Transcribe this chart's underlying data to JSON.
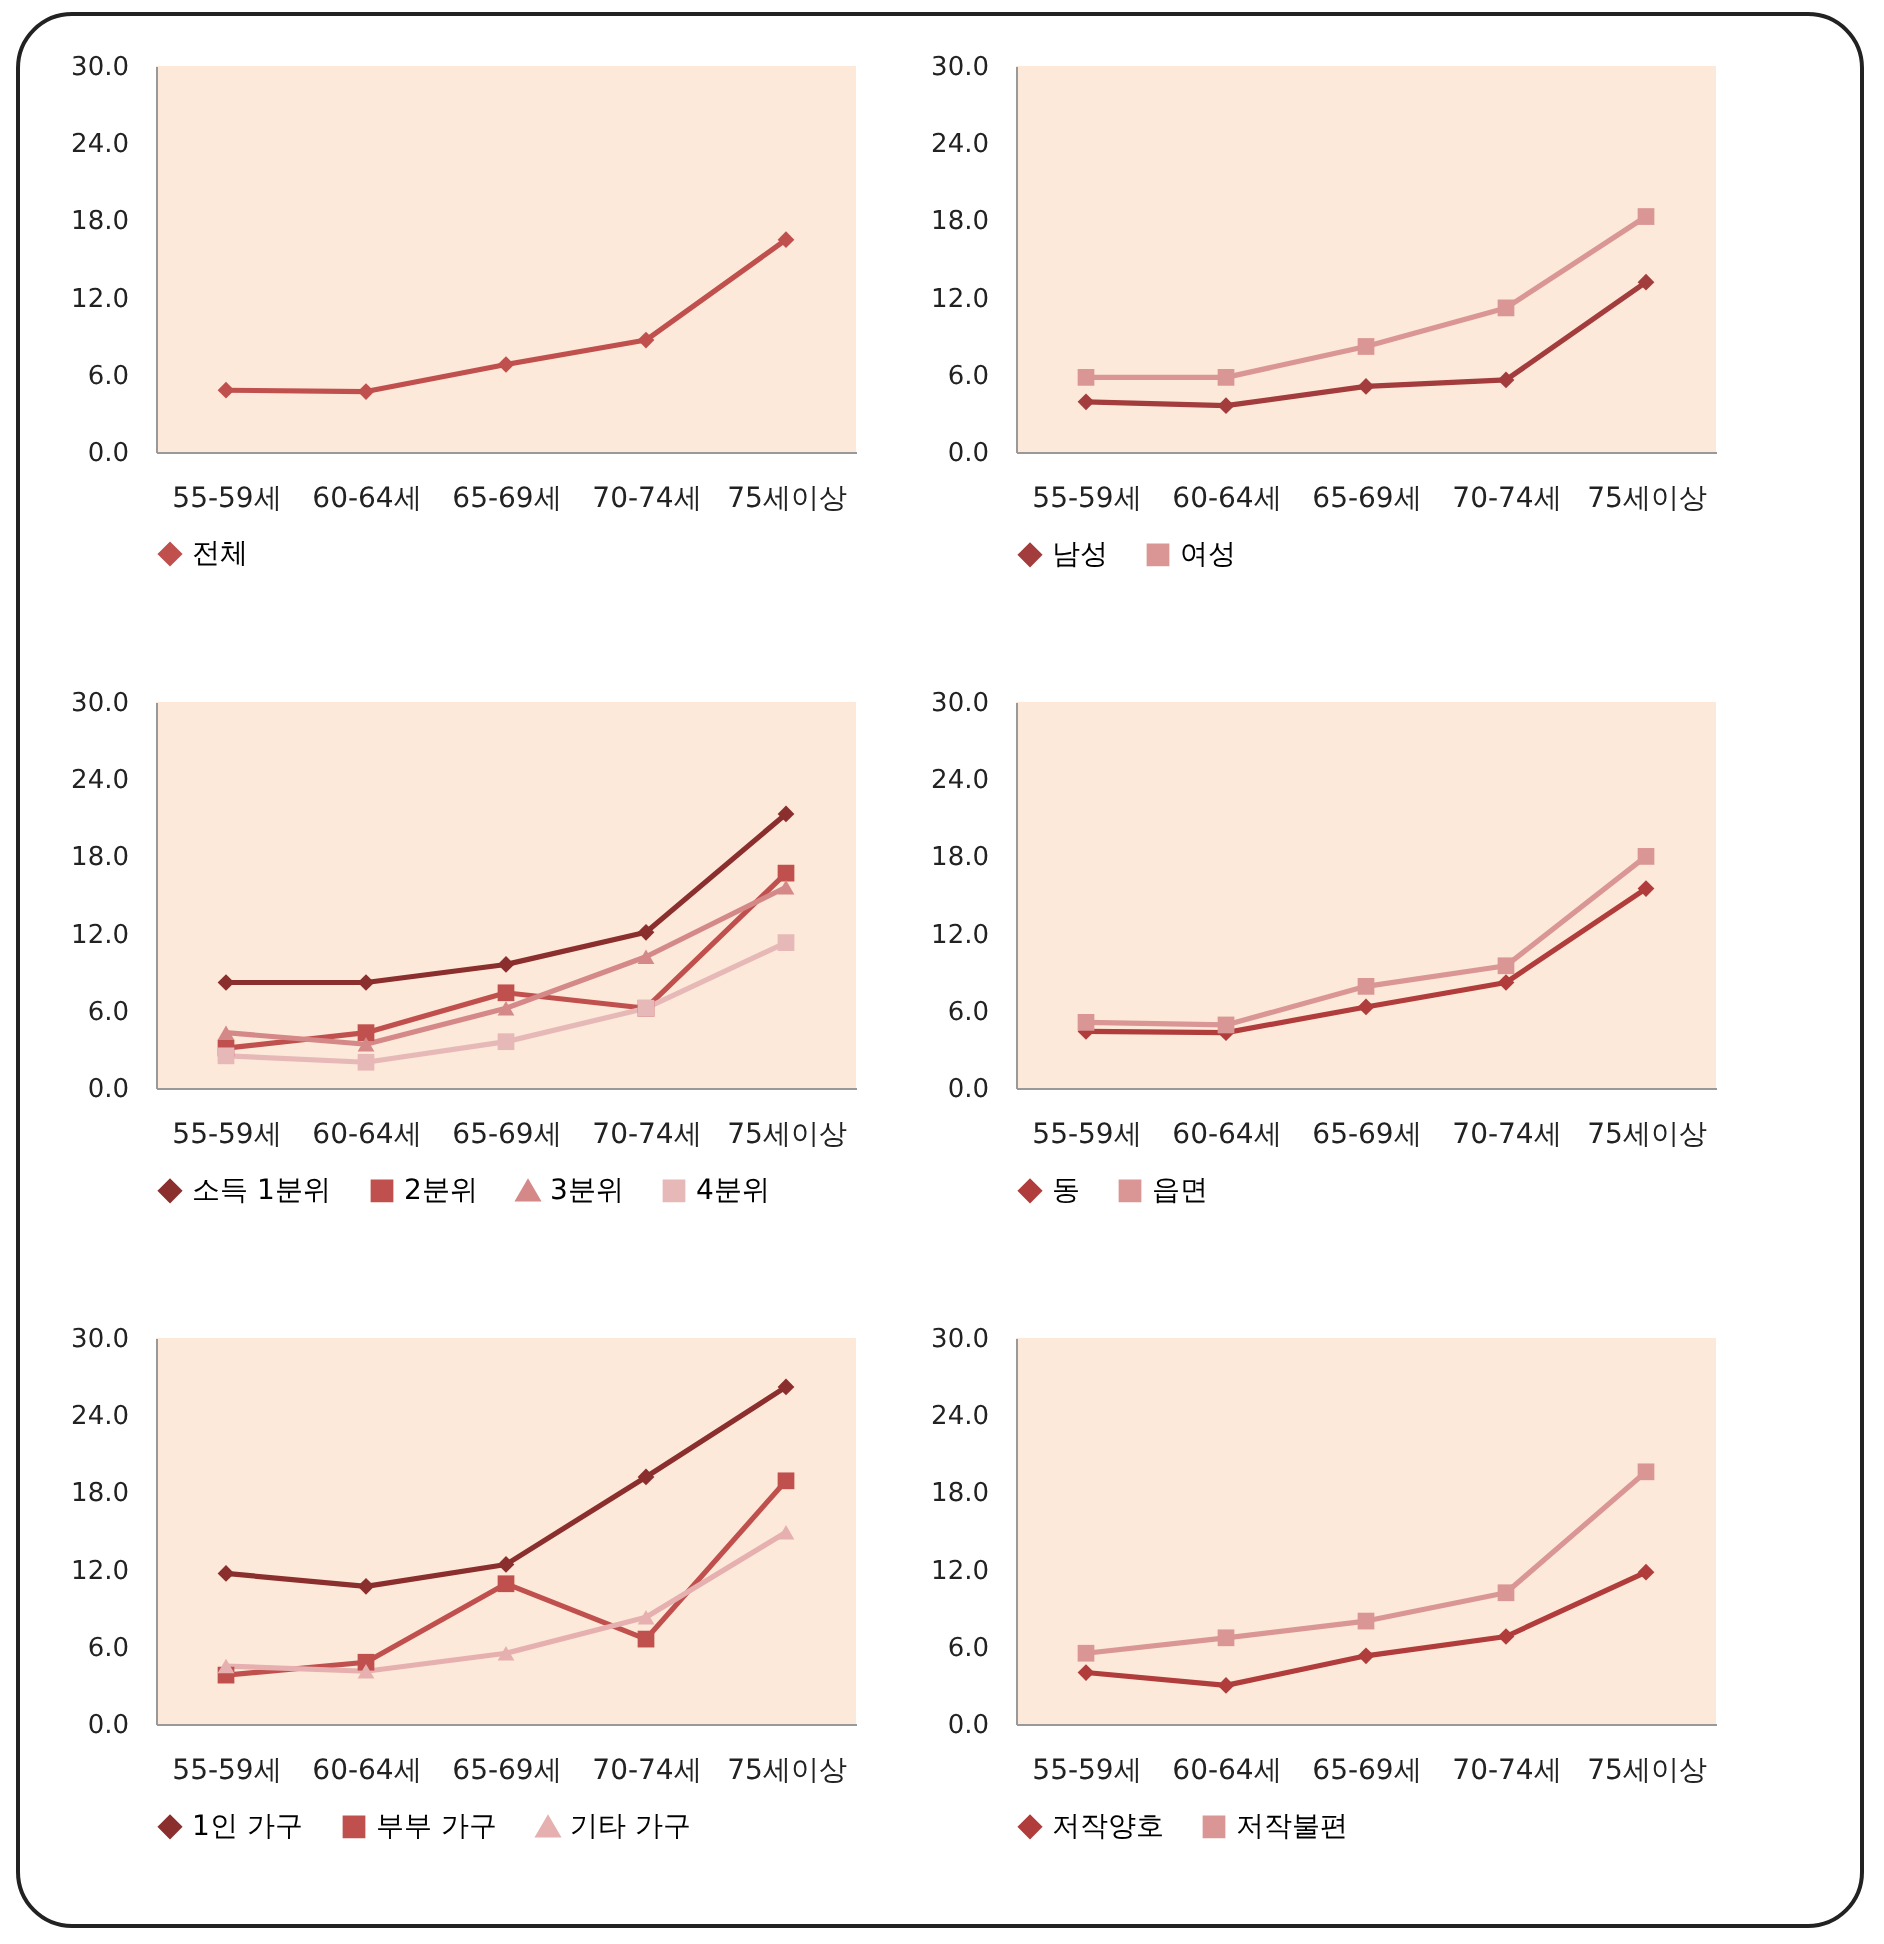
{
  "chart_data": [
    {
      "type": "line",
      "categories": [
        "55-59세",
        "60-64세",
        "65-69세",
        "70-74세",
        "75세이상"
      ],
      "ylim": [
        0,
        30
      ],
      "yticks": [
        {
          "value": 0,
          "label": "0.0"
        },
        {
          "value": 6,
          "label": "6.0"
        },
        {
          "value": 12,
          "label": "12.0"
        },
        {
          "value": 18,
          "label": "18.0"
        },
        {
          "value": 24,
          "label": "24.0"
        },
        {
          "value": 30,
          "label": "30.0"
        }
      ],
      "grid": false,
      "legend": "bottom",
      "line_style": "solid",
      "series": [
        {
          "name": "전체",
          "color": "#c0504d",
          "marker": "diamond",
          "values": [
            4.8,
            4.7,
            6.8,
            8.7,
            16.5
          ]
        }
      ]
    },
    {
      "type": "line",
      "categories": [
        "55-59세",
        "60-64세",
        "65-69세",
        "70-74세",
        "75세이상"
      ],
      "ylim": [
        0,
        30
      ],
      "yticks": [
        {
          "value": 0,
          "label": "0.0"
        },
        {
          "value": 6,
          "label": "6.0"
        },
        {
          "value": 12,
          "label": "12.0"
        },
        {
          "value": 18,
          "label": "18.0"
        },
        {
          "value": 24,
          "label": "24.0"
        },
        {
          "value": 30,
          "label": "30.0"
        }
      ],
      "grid": false,
      "legend": "bottom",
      "line_style": "solid",
      "series": [
        {
          "name": "남성",
          "color": "#a33c3c",
          "marker": "diamond",
          "values": [
            3.9,
            3.6,
            5.1,
            5.6,
            13.2
          ]
        },
        {
          "name": "여성",
          "color": "#d99694",
          "marker": "square",
          "values": [
            5.8,
            5.8,
            8.2,
            11.2,
            18.3
          ]
        }
      ]
    },
    {
      "type": "line",
      "categories": [
        "55-59세",
        "60-64세",
        "65-69세",
        "70-74세",
        "75세이상"
      ],
      "ylim": [
        0,
        30
      ],
      "yticks": [
        {
          "value": 0,
          "label": "0.0"
        },
        {
          "value": 6,
          "label": "6.0"
        },
        {
          "value": 12,
          "label": "12.0"
        },
        {
          "value": 18,
          "label": "18.0"
        },
        {
          "value": 24,
          "label": "24.0"
        },
        {
          "value": 30,
          "label": "30.0"
        }
      ],
      "grid": false,
      "legend": "bottom",
      "line_style": "solid",
      "series": [
        {
          "name": "소득 1분위",
          "color": "#8b2e2e",
          "marker": "diamond",
          "values": [
            8.2,
            8.2,
            9.6,
            12.1,
            21.3
          ]
        },
        {
          "name": "2분위",
          "color": "#c0504d",
          "marker": "square",
          "values": [
            3.1,
            4.3,
            7.4,
            6.2,
            16.7
          ]
        },
        {
          "name": "3분위",
          "color": "#d48888",
          "marker": "triangle",
          "values": [
            4.3,
            3.4,
            6.2,
            10.2,
            15.6
          ]
        },
        {
          "name": "4분위",
          "color": "#e6b9b8",
          "marker": "square",
          "values": [
            2.5,
            2.0,
            3.6,
            6.2,
            11.3
          ]
        }
      ]
    },
    {
      "type": "line",
      "categories": [
        "55-59세",
        "60-64세",
        "65-69세",
        "70-74세",
        "75세이상"
      ],
      "ylim": [
        0,
        30
      ],
      "yticks": [
        {
          "value": 0,
          "label": "0.0"
        },
        {
          "value": 6,
          "label": "6.0"
        },
        {
          "value": 12,
          "label": "12.0"
        },
        {
          "value": 18,
          "label": "18.0"
        },
        {
          "value": 24,
          "label": "24.0"
        },
        {
          "value": 30,
          "label": "30.0"
        }
      ],
      "grid": false,
      "legend": "bottom",
      "line_style": "solid",
      "series": [
        {
          "name": "동",
          "color": "#b03c3c",
          "marker": "diamond",
          "values": [
            4.4,
            4.3,
            6.3,
            8.2,
            15.5
          ]
        },
        {
          "name": "읍면",
          "color": "#d99694",
          "marker": "square",
          "values": [
            5.1,
            4.9,
            7.9,
            9.5,
            18.0
          ]
        }
      ]
    },
    {
      "type": "line",
      "categories": [
        "55-59세",
        "60-64세",
        "65-69세",
        "70-74세",
        "75세이상"
      ],
      "ylim": [
        0,
        30
      ],
      "yticks": [
        {
          "value": 0,
          "label": "0.0"
        },
        {
          "value": 6,
          "label": "6.0"
        },
        {
          "value": 12,
          "label": "12.0"
        },
        {
          "value": 18,
          "label": "18.0"
        },
        {
          "value": 24,
          "label": "24.0"
        },
        {
          "value": 30,
          "label": "30.0"
        }
      ],
      "grid": false,
      "legend": "bottom",
      "line_style": "solid",
      "series": [
        {
          "name": "1인 가구",
          "color": "#8b2e2e",
          "marker": "diamond",
          "values": [
            11.7,
            10.7,
            12.4,
            19.2,
            26.2
          ]
        },
        {
          "name": "부부 가구",
          "color": "#c0504d",
          "marker": "square",
          "values": [
            3.8,
            4.8,
            10.9,
            6.6,
            18.9
          ]
        },
        {
          "name": "기타 가구",
          "color": "#e6b0b0",
          "marker": "triangle",
          "values": [
            4.5,
            4.1,
            5.5,
            8.3,
            14.9
          ]
        }
      ]
    },
    {
      "type": "line",
      "categories": [
        "55-59세",
        "60-64세",
        "65-69세",
        "70-74세",
        "75세이상"
      ],
      "ylim": [
        0,
        30
      ],
      "yticks": [
        {
          "value": 0,
          "label": "0.0"
        },
        {
          "value": 6,
          "label": "6.0"
        },
        {
          "value": 12,
          "label": "12.0"
        },
        {
          "value": 18,
          "label": "18.0"
        },
        {
          "value": 24,
          "label": "24.0"
        },
        {
          "value": 30,
          "label": "30.0"
        }
      ],
      "grid": false,
      "legend": "bottom",
      "line_style": "solid",
      "series": [
        {
          "name": "저작양호",
          "color": "#b03c3c",
          "marker": "diamond",
          "values": [
            4.0,
            3.0,
            5.3,
            6.8,
            11.8
          ]
        },
        {
          "name": "저작불편",
          "color": "#d99694",
          "marker": "square",
          "values": [
            5.5,
            6.7,
            8.0,
            10.2,
            19.6
          ]
        }
      ]
    }
  ]
}
